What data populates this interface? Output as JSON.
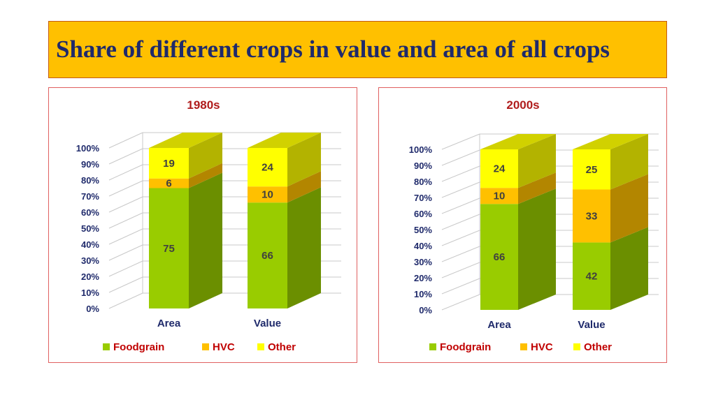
{
  "title": "Share of different crops in value and area of all crops",
  "colors": {
    "Foodgrain": "#99cc00",
    "HVC": "#ffc000",
    "Other": "#ffff00"
  },
  "chart_data": [
    {
      "type": "bar",
      "stacked": true,
      "title": "1980s",
      "categories": [
        "Area",
        "Value"
      ],
      "series": [
        {
          "name": "Foodgrain",
          "values": [
            75,
            66
          ]
        },
        {
          "name": "HVC",
          "values": [
            6,
            10
          ]
        },
        {
          "name": "Other",
          "values": [
            19,
            24
          ]
        }
      ],
      "yticks": [
        "0%",
        "10%",
        "20%",
        "30%",
        "40%",
        "50%",
        "60%",
        "70%",
        "80%",
        "90%",
        "100%"
      ],
      "ylim": [
        0,
        100
      ],
      "legend": "bottom",
      "grid": true
    },
    {
      "type": "bar",
      "stacked": true,
      "title": "2000s",
      "categories": [
        "Area",
        "Value"
      ],
      "series": [
        {
          "name": "Foodgrain",
          "values": [
            66,
            42
          ]
        },
        {
          "name": "HVC",
          "values": [
            10,
            33
          ]
        },
        {
          "name": "Other",
          "values": [
            24,
            25
          ]
        }
      ],
      "yticks": [
        "0%",
        "10%",
        "20%",
        "30%",
        "40%",
        "50%",
        "60%",
        "70%",
        "80%",
        "90%",
        "100%"
      ],
      "ylim": [
        0,
        100
      ],
      "legend": "bottom",
      "grid": true
    }
  ]
}
